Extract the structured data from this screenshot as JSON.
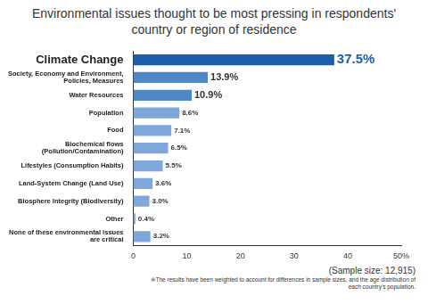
{
  "chart_data": {
    "type": "bar",
    "orientation": "horizontal",
    "title": "Environmental issues thought to be most pressing in respondents' country or region of residence",
    "categories": [
      "Climate Change",
      "Society, Economy and Environment, Policies, Measures",
      "Water Resources",
      "Population",
      "Food",
      "Biochemical flows (Pollution/Contamination)",
      "Lifestyles (Consumption Habits)",
      "Land-System Change (Land Use)",
      "Biosphere Integrity (Biodiversity)",
      "Other",
      "None of these environmental issues are critical"
    ],
    "values": [
      37.5,
      13.9,
      10.9,
      8.6,
      7.1,
      6.5,
      5.5,
      3.6,
      3.0,
      0.4,
      3.2
    ],
    "value_labels": [
      "37.5%",
      "13.9%",
      "10.9%",
      "8.6%",
      "7.1%",
      "6.5%",
      "5.5%",
      "3.6%",
      "3.0%",
      "0.4%",
      "3.2%"
    ],
    "data_labels": true,
    "colors": [
      "#1b5ea9",
      "#4f86c6",
      "#4f86c6",
      "#7fa7d9",
      "#7fa7d9",
      "#7fa7d9",
      "#7fa7d9",
      "#7fa7d9",
      "#7fa7d9",
      "#7fa7d9",
      "#7fa7d9"
    ],
    "xlim": [
      0,
      50
    ],
    "xticks": [
      0,
      10,
      20,
      30,
      40,
      {
        "value": 50,
        "label": "50%"
      }
    ],
    "grid": false,
    "annotations": [
      "(Sample size: 12,915)",
      "※The results have been weighted to account for differences in sample sizes, and the age distribution of each country's population."
    ]
  }
}
